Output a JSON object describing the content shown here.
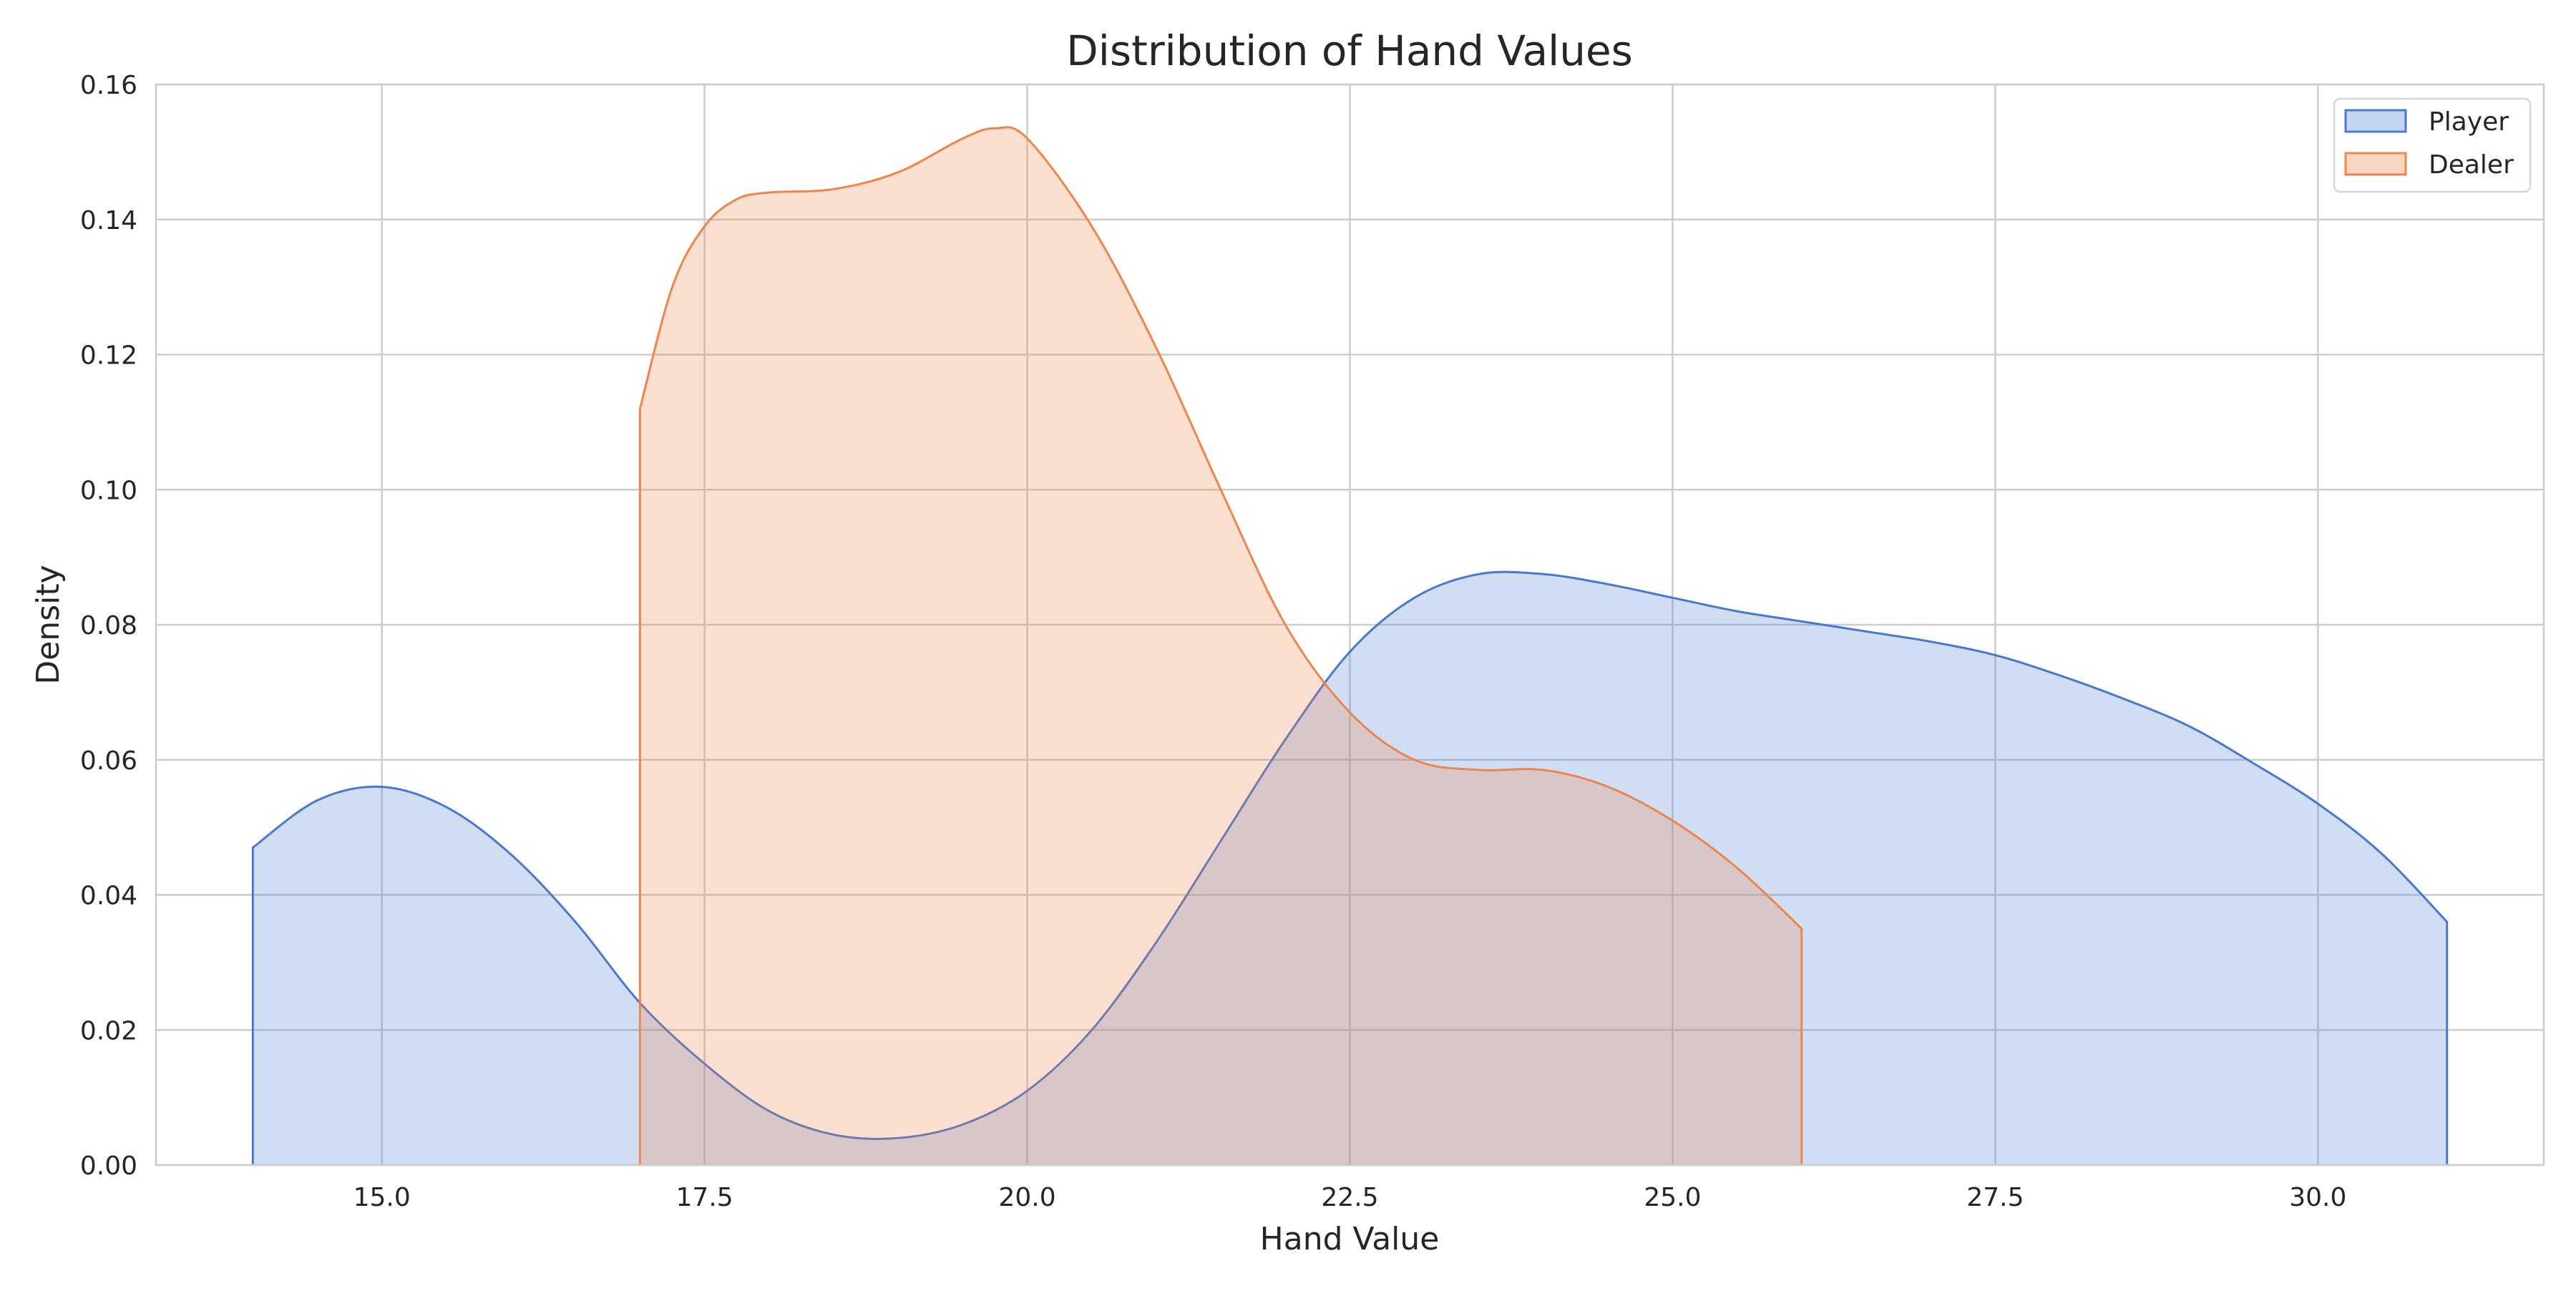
{
  "chart_data": {
    "type": "area",
    "title": "Distribution of Hand Values",
    "xlabel": "Hand Value",
    "ylabel": "Density",
    "xlim": [
      13.25,
      31.75
    ],
    "ylim": [
      0.0,
      0.16
    ],
    "xticks": [
      15.0,
      17.5,
      20.0,
      22.5,
      25.0,
      27.5,
      30.0
    ],
    "yticks": [
      0.0,
      0.02,
      0.04,
      0.06,
      0.08,
      0.1,
      0.12,
      0.14,
      0.16
    ],
    "xtick_labels": [
      "15.0",
      "17.5",
      "20.0",
      "22.5",
      "25.0",
      "27.5",
      "30.0"
    ],
    "ytick_labels": [
      "0.00",
      "0.02",
      "0.04",
      "0.06",
      "0.08",
      "0.10",
      "0.12",
      "0.14",
      "0.16"
    ],
    "grid": true,
    "legend_position": "top-right",
    "series": [
      {
        "name": "Player",
        "color": "#4878d0",
        "fill": "#c5d5f1",
        "x": [
          14.0,
          14.5,
          15.0,
          15.5,
          16.0,
          16.5,
          17.0,
          17.5,
          18.0,
          18.5,
          19.0,
          19.5,
          20.0,
          20.5,
          21.0,
          21.5,
          22.0,
          22.5,
          23.0,
          23.5,
          24.0,
          24.5,
          25.0,
          25.5,
          26.0,
          26.5,
          27.0,
          27.5,
          28.0,
          28.5,
          29.0,
          29.5,
          30.0,
          30.5,
          31.0
        ],
        "y": [
          0.047,
          0.054,
          0.056,
          0.053,
          0.046,
          0.036,
          0.024,
          0.015,
          0.008,
          0.0045,
          0.004,
          0.006,
          0.011,
          0.02,
          0.033,
          0.048,
          0.063,
          0.076,
          0.084,
          0.0875,
          0.0875,
          0.086,
          0.084,
          0.082,
          0.0805,
          0.079,
          0.0775,
          0.0755,
          0.0725,
          0.069,
          0.065,
          0.0595,
          0.0535,
          0.046,
          0.036
        ]
      },
      {
        "name": "Dealer",
        "color": "#ee854a",
        "fill": "#f7d6c4",
        "x": [
          17.0,
          17.25,
          17.5,
          17.75,
          18.0,
          18.5,
          19.0,
          19.5,
          19.75,
          20.0,
          20.5,
          21.0,
          21.5,
          22.0,
          22.5,
          23.0,
          23.5,
          24.0,
          24.5,
          25.0,
          25.5,
          26.0
        ],
        "y": [
          0.112,
          0.13,
          0.139,
          0.143,
          0.144,
          0.1445,
          0.147,
          0.152,
          0.1535,
          0.152,
          0.139,
          0.121,
          0.1,
          0.08,
          0.067,
          0.06,
          0.0585,
          0.0585,
          0.056,
          0.051,
          0.044,
          0.035
        ]
      }
    ]
  }
}
